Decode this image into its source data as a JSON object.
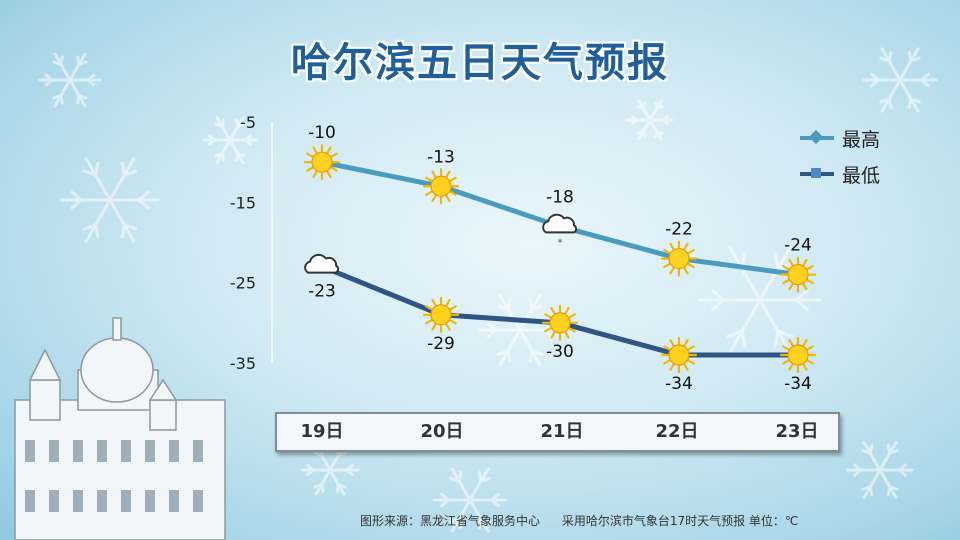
{
  "title": "哈尔滨五日天气预报",
  "footer": {
    "source": "图形来源：黑龙江省气象服务中心",
    "note": "采用哈尔滨市气象台17时天气预报 单位：℃"
  },
  "colors": {
    "high": "#4a9cbf",
    "low": "#2f5585"
  },
  "chart_data": {
    "type": "line",
    "title": "哈尔滨五日天气预报",
    "categories": [
      "19日",
      "20日",
      "21日",
      "22日",
      "23日"
    ],
    "ylim": [
      -35,
      -5
    ],
    "yticks": [
      -5,
      -15,
      -25,
      -35
    ],
    "legend_position": "top-right",
    "series": [
      {
        "name": "最高",
        "values": [
          -10,
          -13,
          -18,
          -22,
          -24
        ],
        "icons": [
          "sun-icon",
          "sun-icon",
          "cloud-snow-icon",
          "sun-icon",
          "sun-icon"
        ]
      },
      {
        "name": "最低",
        "values": [
          -23,
          -29,
          -30,
          -34,
          -34
        ],
        "icons": [
          "cloud-icon",
          "sun-icon",
          "sun-icon",
          "sun-icon",
          "sun-icon"
        ]
      }
    ]
  }
}
